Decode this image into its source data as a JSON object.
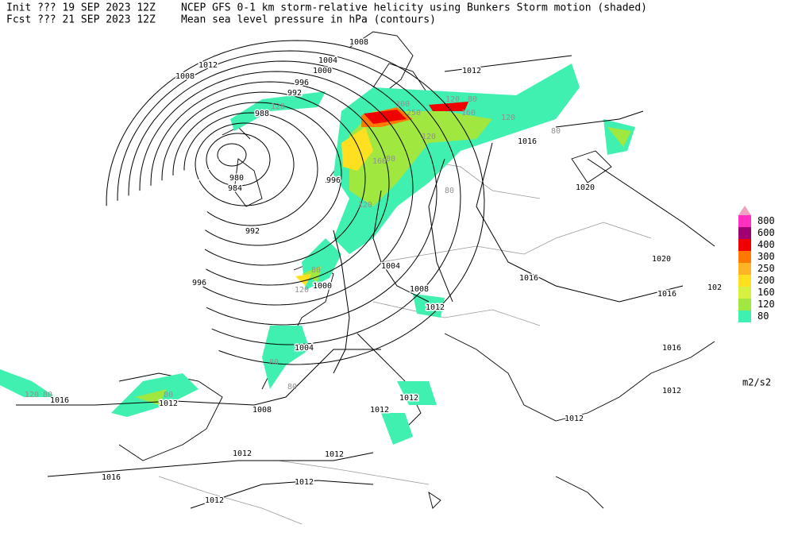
{
  "header": {
    "init": "Init  ??? 19 SEP 2023 12Z",
    "fcst": "Fcst ??? 21 SEP 2023 12Z",
    "title_shaded": "NCEP GFS 0-1 km storm-relative helicity using Bunkers Storm motion (shaded)",
    "title_contours": "Mean sea level pressure in hPa (contours)"
  },
  "legend": {
    "items": [
      {
        "label": "800",
        "color": "#ff30c0"
      },
      {
        "label": "600",
        "color": "#a00070"
      },
      {
        "label": "400",
        "color": "#f00000"
      },
      {
        "label": "300",
        "color": "#ff7800"
      },
      {
        "label": "250",
        "color": "#ffb428"
      },
      {
        "label": "200",
        "color": "#ffe020"
      },
      {
        "label": "160",
        "color": "#d8f040"
      },
      {
        "label": "120",
        "color": "#a0e840"
      },
      {
        "label": "80",
        "color": "#40f0b0"
      }
    ],
    "unit": "m2/s2"
  },
  "contour_labels": [
    "1008",
    "1012",
    "1008",
    "1004",
    "1000",
    "996",
    "992",
    "988",
    "980",
    "984",
    "992",
    "996",
    "996",
    "1000",
    "1004",
    "1008",
    "1012",
    "1004",
    "1008",
    "1012",
    "1016",
    "1012",
    "1016",
    "1012",
    "1012",
    "1012",
    "1012",
    "1012",
    "1012",
    "1012",
    "1016",
    "1016",
    "1016",
    "1020",
    "1020",
    "1016",
    "1012",
    "102"
  ],
  "helicity_labels": [
    "120",
    "160",
    "250",
    "300",
    "120",
    "80",
    "120",
    "80",
    "120",
    "160",
    "80",
    "120",
    "80",
    "120",
    "80",
    "80",
    "80",
    "80",
    "120",
    "80"
  ]
}
